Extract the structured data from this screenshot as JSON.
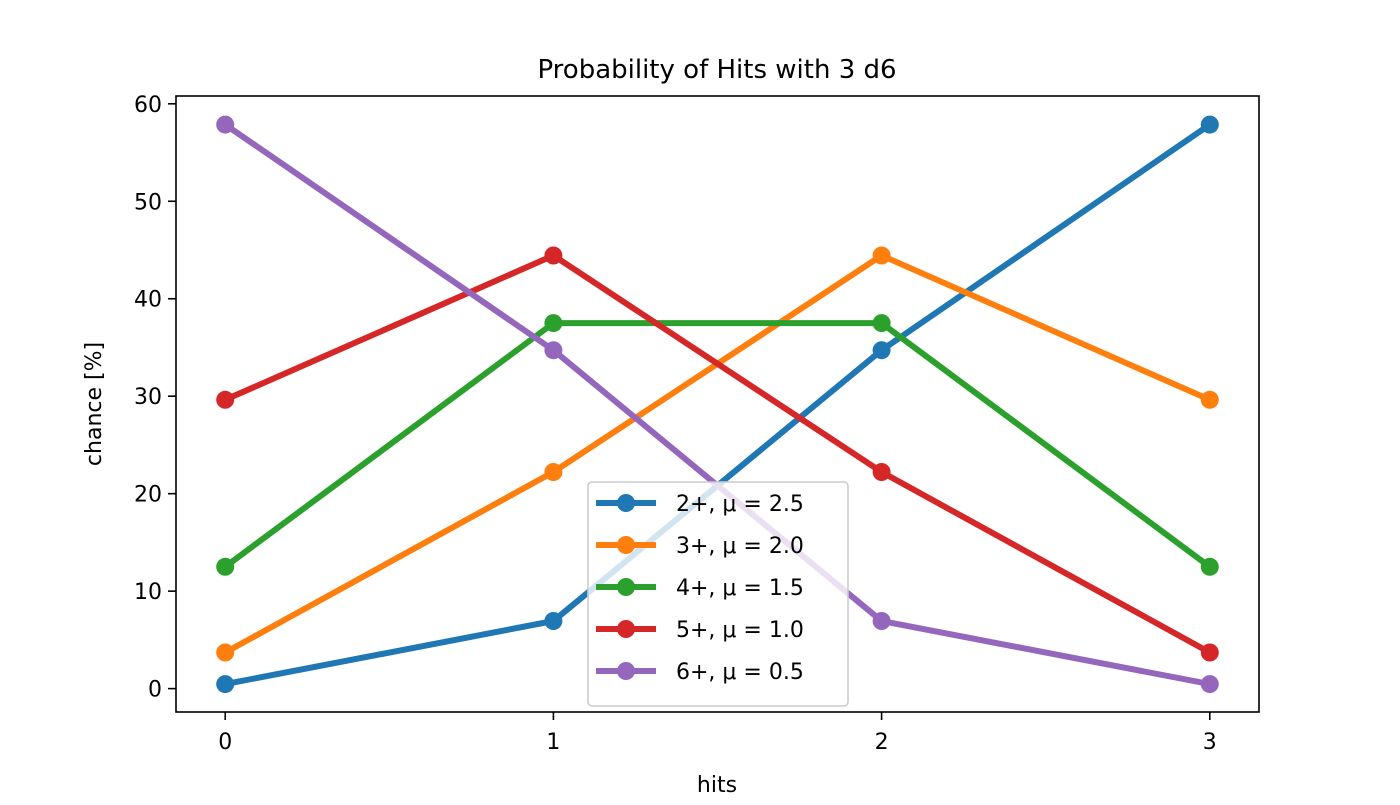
{
  "chart_data": {
    "type": "line",
    "title": "Probability of Hits with 3 d6",
    "xlabel": "hits",
    "ylabel": "chance [%]",
    "x": [
      0,
      1,
      2,
      3
    ],
    "xticks": [
      "0",
      "1",
      "2",
      "3"
    ],
    "xlim": [
      -0.15,
      3.15
    ],
    "yticks": [
      "0",
      "10",
      "20",
      "30",
      "40",
      "50",
      "60"
    ],
    "ylim": [
      -2.4,
      60.8
    ],
    "grid": false,
    "legend_position": "lower-center",
    "series": [
      {
        "name": "2+, μ = 2.5",
        "color": "#1f77b4",
        "values": [
          0.46,
          6.94,
          34.72,
          57.87
        ]
      },
      {
        "name": "3+, μ = 2.0",
        "color": "#ff7f0e",
        "values": [
          3.7,
          22.22,
          44.44,
          29.63
        ]
      },
      {
        "name": "4+, μ = 1.5",
        "color": "#2ca02c",
        "values": [
          12.5,
          37.5,
          37.5,
          12.5
        ]
      },
      {
        "name": "5+, μ = 1.0",
        "color": "#d62728",
        "values": [
          29.63,
          44.44,
          22.22,
          3.7
        ]
      },
      {
        "name": "6+, μ = 0.5",
        "color": "#9467bd",
        "values": [
          57.87,
          34.72,
          6.94,
          0.46
        ]
      }
    ]
  }
}
